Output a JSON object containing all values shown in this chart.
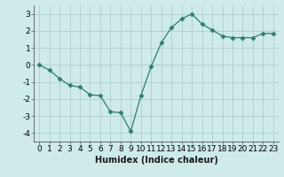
{
  "x": [
    0,
    1,
    2,
    3,
    4,
    5,
    6,
    7,
    8,
    9,
    10,
    11,
    12,
    13,
    14,
    15,
    16,
    17,
    18,
    19,
    20,
    21,
    22,
    23
  ],
  "y": [
    0.0,
    -0.3,
    -0.8,
    -1.2,
    -1.3,
    -1.75,
    -1.8,
    -2.75,
    -2.8,
    -3.9,
    -1.8,
    -0.1,
    1.3,
    2.2,
    2.7,
    3.0,
    2.4,
    2.05,
    1.7,
    1.6,
    1.6,
    1.6,
    1.85,
    1.85
  ],
  "xlabel": "Humidex (Indice chaleur)",
  "xlim": [
    -0.5,
    23.5
  ],
  "ylim": [
    -4.5,
    3.5
  ],
  "yticks": [
    -4,
    -3,
    -2,
    -1,
    0,
    1,
    2,
    3
  ],
  "xticks": [
    0,
    1,
    2,
    3,
    4,
    5,
    6,
    7,
    8,
    9,
    10,
    11,
    12,
    13,
    14,
    15,
    16,
    17,
    18,
    19,
    20,
    21,
    22,
    23
  ],
  "line_color": "#2e7d6e",
  "marker": "D",
  "marker_size": 2.5,
  "bg_color": "#ceeaea",
  "grid_color": "#aac8c8",
  "xlabel_fontsize": 7,
  "tick_fontsize": 6.5
}
